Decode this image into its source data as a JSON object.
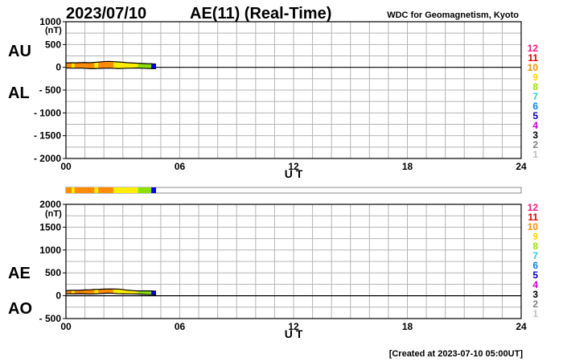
{
  "header": {
    "date": "2023/07/10",
    "title": "AE(11) (Real-Time)",
    "institution": "WDC for Geomagnetism, Kyoto"
  },
  "footer": {
    "created": "[Created at 2023-07-10 05:00UT]"
  },
  "legend": {
    "numbers": [
      "12",
      "11",
      "10",
      "9",
      "8",
      "7",
      "6",
      "5",
      "4",
      "3",
      "2",
      "1"
    ],
    "colors": [
      "#ff1a75",
      "#e60000",
      "#ff8c00",
      "#ffd700",
      "#99e600",
      "#33cccc",
      "#0080ff",
      "#0000cc",
      "#cc00cc",
      "#000000",
      "#808080",
      "#c0c0c0"
    ]
  },
  "colors": {
    "orange": "#ff8c00",
    "yellow": "#ffee00",
    "green": "#8ce000",
    "blue": "#0000ff"
  },
  "chart_data": [
    {
      "type": "area",
      "ylabel": "(nT)",
      "xlabel": "U T",
      "series_labels": [
        "AU",
        "AL"
      ],
      "ylim": [
        -2000,
        1000
      ],
      "yticks": [
        1000,
        500,
        0,
        -500,
        -1000,
        -1500,
        -2000
      ],
      "ytick_labels": [
        "1000",
        "500",
        "0",
        "- 500",
        "- 1000",
        "- 1500",
        "- 2000"
      ],
      "xlim": [
        0,
        24
      ],
      "xticks": [
        0,
        6,
        12,
        18,
        24
      ],
      "xtick_labels": [
        "00",
        "06",
        "12",
        "18",
        "24"
      ],
      "grid": true,
      "x": [
        0,
        0.25,
        0.5,
        0.75,
        1.0,
        1.25,
        1.5,
        1.75,
        2.0,
        2.25,
        2.5,
        2.75,
        3.0,
        3.25,
        3.5,
        3.75,
        4.0,
        4.25,
        4.5,
        4.75
      ],
      "series": [
        {
          "name": "AU",
          "values": [
            95,
            100,
            98,
            102,
            105,
            100,
            108,
            115,
            125,
            130,
            125,
            118,
            110,
            100,
            95,
            90,
            85,
            80,
            78,
            70
          ]
        },
        {
          "name": "AL",
          "values": [
            -15,
            -18,
            -20,
            -16,
            -22,
            -28,
            -30,
            -25,
            -20,
            -18,
            -22,
            -28,
            -25,
            -20,
            -18,
            -15,
            -20,
            -25,
            -28,
            -30
          ]
        }
      ]
    },
    {
      "type": "area",
      "ylabel": "(nT)",
      "xlabel": "U T",
      "series_labels": [
        "AE",
        "AO"
      ],
      "ylim": [
        -500,
        2000
      ],
      "yticks": [
        2000,
        1500,
        1000,
        500,
        0,
        -500
      ],
      "ytick_labels": [
        "2000",
        "1500",
        "1000",
        "500",
        "0",
        "- 500"
      ],
      "xlim": [
        0,
        24
      ],
      "xticks": [
        0,
        6,
        12,
        18,
        24
      ],
      "xtick_labels": [
        "00",
        "06",
        "12",
        "18",
        "24"
      ],
      "grid": true,
      "x": [
        0,
        0.25,
        0.5,
        0.75,
        1.0,
        1.25,
        1.5,
        1.75,
        2.0,
        2.25,
        2.5,
        2.75,
        3.0,
        3.25,
        3.5,
        3.75,
        4.0,
        4.25,
        4.5,
        4.75
      ],
      "series": [
        {
          "name": "AE",
          "values": [
            110,
            118,
            118,
            118,
            127,
            128,
            138,
            140,
            145,
            148,
            147,
            146,
            135,
            120,
            113,
            105,
            105,
            105,
            106,
            100
          ]
        },
        {
          "name": "AO",
          "values": [
            40,
            41,
            39,
            43,
            41,
            36,
            39,
            45,
            52,
            56,
            51,
            45,
            42,
            40,
            38,
            37,
            32,
            27,
            25,
            20
          ]
        }
      ]
    }
  ],
  "station_bar": {
    "segments": [
      {
        "start": 0,
        "end": 0.3,
        "color_key": "orange"
      },
      {
        "start": 0.3,
        "end": 0.45,
        "color_key": "yellow"
      },
      {
        "start": 0.45,
        "end": 1.5,
        "color_key": "orange"
      },
      {
        "start": 1.5,
        "end": 1.7,
        "color_key": "yellow"
      },
      {
        "start": 1.7,
        "end": 2.5,
        "color_key": "orange"
      },
      {
        "start": 2.5,
        "end": 3.8,
        "color_key": "yellow"
      },
      {
        "start": 3.8,
        "end": 4.5,
        "color_key": "green"
      },
      {
        "start": 4.5,
        "end": 4.75,
        "color_key": "blue"
      }
    ]
  }
}
